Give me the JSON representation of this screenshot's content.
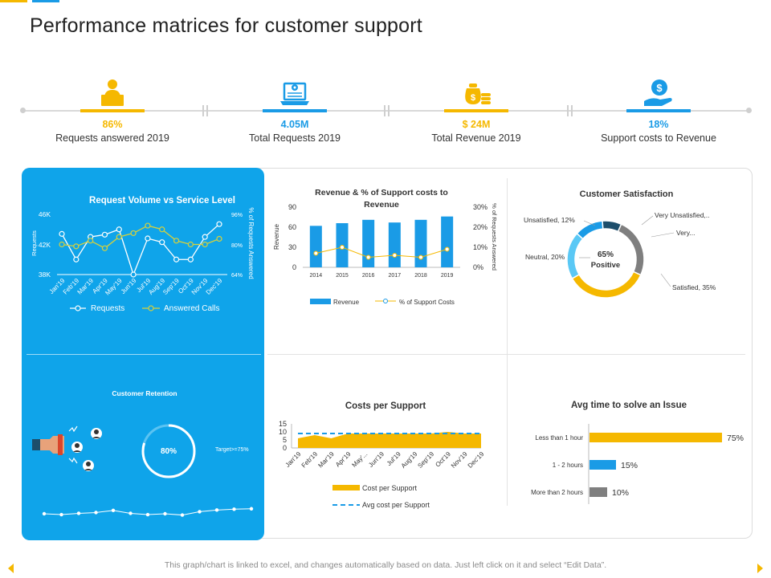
{
  "page": {
    "title": "Performance matrices for customer support",
    "footer": "This graph/chart is linked to excel, and changes automatically based on data. Just left click on it and select “Edit Data”."
  },
  "colors": {
    "yellow": "#f5b800",
    "blue": "#1a9be6",
    "panel_blue": "#0fa4ea",
    "dark": "#1d4e6b",
    "gray": "#7f7f7f"
  },
  "kpis": [
    {
      "value": "86%",
      "label": "Requests answered 2019",
      "icon": "person-at-laptop-icon",
      "color": "#f5b800"
    },
    {
      "value": "4.05M",
      "label": "Total Requests 2019",
      "icon": "laptop-gear-icon",
      "color": "#1a9be6"
    },
    {
      "value": "$ 24M",
      "label": "Total Revenue 2019",
      "icon": "money-bag-coins-icon",
      "color": "#f5b800"
    },
    {
      "value": "18%",
      "label": "Support costs to Revenue",
      "icon": "hand-dollar-icon",
      "color": "#1a9be6"
    }
  ],
  "retention": {
    "title": "Customer Retention",
    "value": "80%",
    "target": "Target>=75%",
    "trend": [
      5,
      4.6,
      5.2,
      5.6,
      6.6,
      5.2,
      4.6,
      5.0,
      4.4,
      6.0,
      6.8,
      7.2,
      7.4
    ],
    "icons": [
      "magnet-hand-icon",
      "person-icon",
      "person-icon",
      "person-icon"
    ]
  },
  "chart_data": [
    {
      "type": "line",
      "title": "Request Volume vs Service Level",
      "ylabel": "Requests",
      "y2label": "% of Requests Answered",
      "categories": [
        "Jan'19",
        "Feb'19",
        "Mar'19",
        "Apr'19",
        "May'19",
        "Jun'19",
        "Jul'19",
        "Aug'19",
        "Sep'19",
        "Oct'19",
        "Nov'19",
        "Dec'19"
      ],
      "y_ticks": [
        "46K",
        "42K",
        "38K"
      ],
      "y2_ticks": [
        "96%",
        "80%",
        "64%"
      ],
      "ylim": [
        38,
        46
      ],
      "y2lim": [
        64,
        96
      ],
      "series": [
        {
          "name": "Requests",
          "axis": "left",
          "values": [
            43.4,
            40.0,
            43.0,
            43.3,
            44.0,
            38.0,
            42.8,
            42.3,
            40.0,
            40.0,
            43.0,
            44.7
          ]
        },
        {
          "name": "Answered Calls",
          "axis": "right",
          "values": [
            80,
            79,
            82,
            78,
            84,
            86,
            90,
            88,
            82,
            80,
            80,
            83
          ]
        }
      ]
    },
    {
      "type": "bar",
      "title": "Revenue & % of Support costs to Revenue",
      "ylabel": "Revenue",
      "y2label": "% of Requests Answered",
      "categories": [
        "2014",
        "2015",
        "2016",
        "2017",
        "2018",
        "2019"
      ],
      "y_ticks": [
        "90",
        "60",
        "30",
        "0"
      ],
      "y2_ticks": [
        "30%",
        "20%",
        "10%",
        "0%"
      ],
      "ylim": [
        0,
        90
      ],
      "y2lim": [
        0,
        30
      ],
      "series": [
        {
          "name": "Revenue",
          "axis": "left",
          "values": [
            62,
            66,
            71,
            67,
            71,
            76
          ]
        },
        {
          "name": "% of Support Costs",
          "axis": "right",
          "values": [
            7,
            10,
            5,
            6,
            5,
            9
          ]
        }
      ]
    },
    {
      "type": "pie",
      "title": "Customer Satisfaction",
      "center_label": "65%",
      "center_sub": "Positive",
      "slices": [
        {
          "label": "Satisfied, 35%",
          "value": 35,
          "color": "#f5b800"
        },
        {
          "label": "Neutral, 20%",
          "value": 20,
          "color": "#5ac8f5"
        },
        {
          "label": "Unsatisfied, 12%",
          "value": 12,
          "color": "#1a9be6"
        },
        {
          "label": "Very Unsatisfied,..",
          "value": 8,
          "color": "#1d4e6b"
        },
        {
          "label": "Very...",
          "value": 25,
          "color": "#7f7f7f"
        }
      ]
    },
    {
      "type": "area",
      "title": "Costs per Support",
      "categories": [
        "Jan'19",
        "Feb'19",
        "Mar'19",
        "Apr'19",
        "May'...",
        "Jun'19",
        "Jul'19",
        "Aug'19",
        "Sep'19",
        "Oct'19",
        "Nov'19",
        "Dec'19"
      ],
      "y_ticks": [
        "15",
        "10",
        "5",
        "0"
      ],
      "ylim": [
        0,
        15
      ],
      "series": [
        {
          "name": "Cost per Support",
          "values": [
            6,
            8,
            6,
            9,
            9,
            9,
            9,
            9,
            9,
            10,
            9,
            9
          ]
        },
        {
          "name": "Avg cost per Support",
          "values": [
            9,
            9,
            9,
            9,
            9,
            9,
            9,
            9,
            9,
            9,
            9,
            9
          ]
        }
      ]
    },
    {
      "type": "bar",
      "orientation": "horizontal",
      "title": "Avg time to solve an Issue",
      "categories": [
        "Less than 1 hour",
        "1 - 2 hours",
        "More than 2 hours"
      ],
      "values": [
        75,
        15,
        10
      ],
      "data_labels": [
        "75%",
        "15%",
        "10%"
      ],
      "colors": [
        "#f5b800",
        "#1a9be6",
        "#7f7f7f"
      ]
    }
  ]
}
